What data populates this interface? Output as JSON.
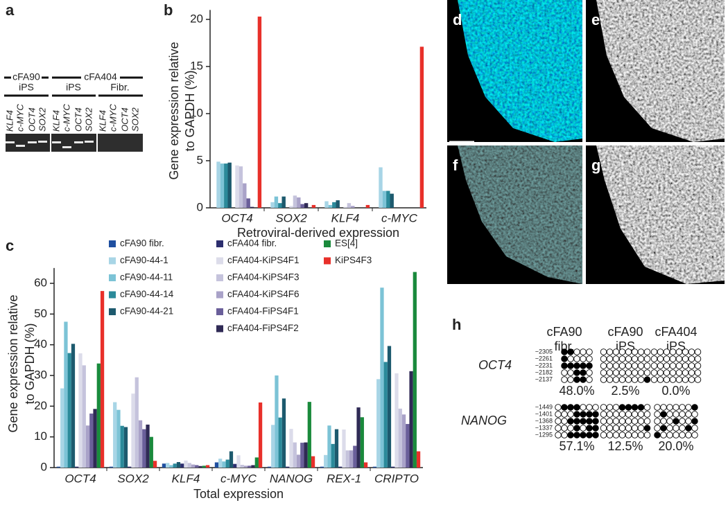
{
  "panel_labels": [
    "a",
    "b",
    "c",
    "d",
    "e",
    "f",
    "g",
    "h"
  ],
  "panel_a": {
    "top_labels": [
      "cFA90",
      "cFA404"
    ],
    "sub_labels": [
      "iPS",
      "iPS",
      "Fibr."
    ],
    "lanes": [
      "KLF4",
      "c-MYC",
      "OCT4",
      "SOX2"
    ]
  },
  "chart_data": [
    {
      "type": "bar",
      "categories": [
        "OCT4",
        "SOX2",
        "KLF4",
        "c-MYC"
      ],
      "series": [
        {
          "color": "#1f4fa0",
          "values": [
            0,
            0,
            0,
            0
          ]
        },
        {
          "color": "#a8d5e6",
          "values": [
            4.9,
            0.6,
            0.7,
            4.3
          ]
        },
        {
          "color": "#7cc3d6",
          "values": [
            4.7,
            1.2,
            0.3,
            1.8
          ]
        },
        {
          "color": "#2b8a9a",
          "values": [
            4.7,
            0.5,
            0.6,
            1.8
          ]
        },
        {
          "color": "#1d5a6e",
          "values": [
            4.8,
            1.2,
            0.8,
            1.5
          ]
        },
        {
          "color": "#2c2e6e",
          "values": [
            0,
            0,
            0,
            0
          ]
        },
        {
          "color": "#dcdcea",
          "values": [
            4.5,
            0.2,
            0.1,
            0
          ]
        },
        {
          "color": "#c5c3dc",
          "values": [
            4.4,
            1.3,
            0.5,
            0
          ]
        },
        {
          "color": "#a9a2c8",
          "values": [
            2.6,
            1.1,
            0.2,
            0
          ]
        },
        {
          "color": "#6a5f9a",
          "values": [
            1.0,
            0.4,
            0,
            0
          ]
        },
        {
          "color": "#2f2a55",
          "values": [
            0.1,
            0.5,
            0,
            0
          ]
        },
        {
          "color": "#1a8a3c",
          "values": [
            0,
            0,
            0,
            0
          ]
        },
        {
          "color": "#e8302a",
          "values": [
            20.3,
            0.3,
            0.3,
            17.1
          ]
        }
      ],
      "ylim": [
        0,
        21
      ],
      "yticks": [
        0,
        5,
        10,
        15,
        20
      ],
      "y_label": [
        "Gene expression relative",
        "to GAPDH (%)"
      ],
      "x_label": "Retroviral-derived expression"
    },
    {
      "type": "bar",
      "categories": [
        "OCT4",
        "SOX2",
        "KLF4",
        "c-MYC",
        "NANOG",
        "REX-1",
        "CRIPTO"
      ],
      "series": [
        {
          "name": "cFA90 fibr.",
          "color": "#1f4fa0",
          "values": [
            0.3,
            0.3,
            1.3,
            1.7,
            0.3,
            0.3,
            0.3
          ]
        },
        {
          "name": "cFA90-44-1",
          "color": "#a8d5e6",
          "values": [
            25.8,
            21.3,
            1.5,
            2.9,
            13.9,
            4.1,
            28.8
          ]
        },
        {
          "name": "cFA90-44-11",
          "color": "#7cc3d6",
          "values": [
            47.5,
            18.8,
            0.8,
            2.0,
            30.0,
            13.7,
            58.6
          ]
        },
        {
          "name": "cFA90-44-14",
          "color": "#2b8a9a",
          "values": [
            37.3,
            13.6,
            1.3,
            2.6,
            16.3,
            7.7,
            34.4
          ]
        },
        {
          "name": "cFA90-44-21",
          "color": "#1d5a6e",
          "values": [
            40.3,
            13.2,
            1.8,
            5.3,
            22.5,
            12.5,
            39.6
          ]
        },
        {
          "name": "cFA404 fibr.",
          "color": "#2c2e6e",
          "values": [
            0.3,
            0.3,
            1.3,
            1.2,
            0.3,
            0.3,
            0.3
          ]
        },
        {
          "name": "cFA404-KiPS4F1",
          "color": "#dcdcea",
          "values": [
            37.2,
            24.1,
            2.3,
            4.0,
            12.6,
            12.4,
            30.7
          ]
        },
        {
          "name": "cFA404-KiPS4F3",
          "color": "#c5c3dc",
          "values": [
            33.3,
            29.4,
            1.5,
            0.9,
            8.2,
            5.6,
            19.2
          ]
        },
        {
          "name": "cFA404-KiPS4F6",
          "color": "#a9a2c8",
          "values": [
            13.7,
            15.4,
            1.0,
            0.6,
            4.2,
            5.6,
            17.3
          ]
        },
        {
          "name": "cFA404-FiPS4F1",
          "color": "#6a5f9a",
          "values": [
            17.6,
            12.5,
            0.8,
            0.6,
            8.1,
            7.1,
            14.2
          ]
        },
        {
          "name": "cFA404-FiPS4F2",
          "color": "#2f2a55",
          "values": [
            19.1,
            14.0,
            0.5,
            0.8,
            8.2,
            19.6,
            31.4
          ]
        },
        {
          "name": "ES[4]",
          "color": "#1a8a3c",
          "values": [
            33.9,
            10.0,
            0.6,
            3.3,
            21.4,
            16.4,
            63.7
          ]
        },
        {
          "name": "KiPS4F3",
          "color": "#e8302a",
          "values": [
            57.5,
            2.2,
            0.8,
            21.2,
            3.7,
            1.7,
            5.3
          ]
        }
      ],
      "ylim": [
        0,
        65
      ],
      "yticks": [
        0,
        10,
        20,
        30,
        40,
        50,
        60
      ],
      "y_label": [
        "Gene expression relative",
        "to GAPDH (%)"
      ],
      "x_label": "Total expression",
      "legend": true
    }
  ],
  "panel_h": {
    "columns": [
      [
        "cFA90",
        "fibr."
      ],
      [
        "cFA90",
        "iPS"
      ],
      [
        "cFA404",
        "iPS"
      ]
    ],
    "rows": [
      {
        "gene": "OCT4",
        "positions": [
          "−2305",
          "−2261",
          "−2231",
          "−2182",
          "−2137"
        ],
        "grids": [
          {
            "cells": [
              [
                1,
                1,
                0,
                0,
                0
              ],
              [
                1,
                0,
                0,
                0,
                0
              ],
              [
                1,
                1,
                1,
                1,
                1
              ],
              [
                0,
                0,
                1,
                1,
                0
              ],
              [
                0,
                0,
                1,
                1,
                0
              ]
            ],
            "percent": "48.0%"
          },
          {
            "cells": [
              [
                0,
                0,
                0,
                0,
                0,
                0,
                0,
                0
              ],
              [
                0,
                0,
                0,
                0,
                0,
                0,
                0,
                0
              ],
              [
                0,
                0,
                0,
                0,
                0,
                0,
                0,
                0
              ],
              [
                0,
                0,
                0,
                0,
                0,
                0,
                0,
                0
              ],
              [
                0,
                0,
                0,
                0,
                0,
                0,
                0,
                1
              ]
            ],
            "percent": "2.5%"
          },
          {
            "cells": [
              [
                0,
                0,
                0,
                0,
                0,
                0,
                0,
                0
              ],
              [
                0,
                0,
                0,
                0,
                0,
                0,
                0,
                0
              ],
              [
                0,
                0,
                0,
                0,
                0,
                0,
                0,
                0
              ],
              [
                0,
                0,
                0,
                0,
                0,
                0,
                0,
                0
              ],
              [
                0,
                0,
                0,
                0,
                0,
                0,
                0,
                0
              ]
            ],
            "percent": "0.0%"
          }
        ]
      },
      {
        "gene": "NANOG",
        "positions": [
          "−1449",
          "−1401",
          "−1368",
          "−1337",
          "−1295"
        ],
        "grids": [
          {
            "cells": [
              [
                0,
                1,
                1,
                1,
                0,
                0,
                0
              ],
              [
                0,
                0,
                0,
                1,
                1,
                1,
                1
              ],
              [
                0,
                0,
                1,
                1,
                1,
                1,
                1
              ],
              [
                0,
                0,
                0,
                1,
                0,
                1,
                1
              ],
              [
                0,
                0,
                1,
                1,
                1,
                1,
                1
              ]
            ],
            "percent": "57.1%"
          },
          {
            "cells": [
              [
                0,
                0,
                0,
                1,
                1,
                1,
                1,
                0
              ],
              [
                0,
                0,
                0,
                0,
                0,
                0,
                0,
                0
              ],
              [
                0,
                0,
                0,
                0,
                0,
                0,
                0,
                0
              ],
              [
                0,
                0,
                0,
                0,
                0,
                0,
                0,
                1
              ],
              [
                0,
                0,
                0,
                0,
                0,
                0,
                0,
                0
              ]
            ],
            "percent": "12.5%"
          },
          {
            "cells": [
              [
                0,
                0,
                0,
                0,
                0,
                0,
                1
              ],
              [
                0,
                1,
                0,
                0,
                0,
                0,
                0
              ],
              [
                0,
                0,
                0,
                1,
                0,
                0,
                1
              ],
              [
                0,
                1,
                0,
                0,
                0,
                1,
                0
              ],
              [
                1,
                0,
                0,
                0,
                0,
                0,
                0
              ]
            ],
            "percent": "20.0%"
          }
        ]
      }
    ]
  }
}
